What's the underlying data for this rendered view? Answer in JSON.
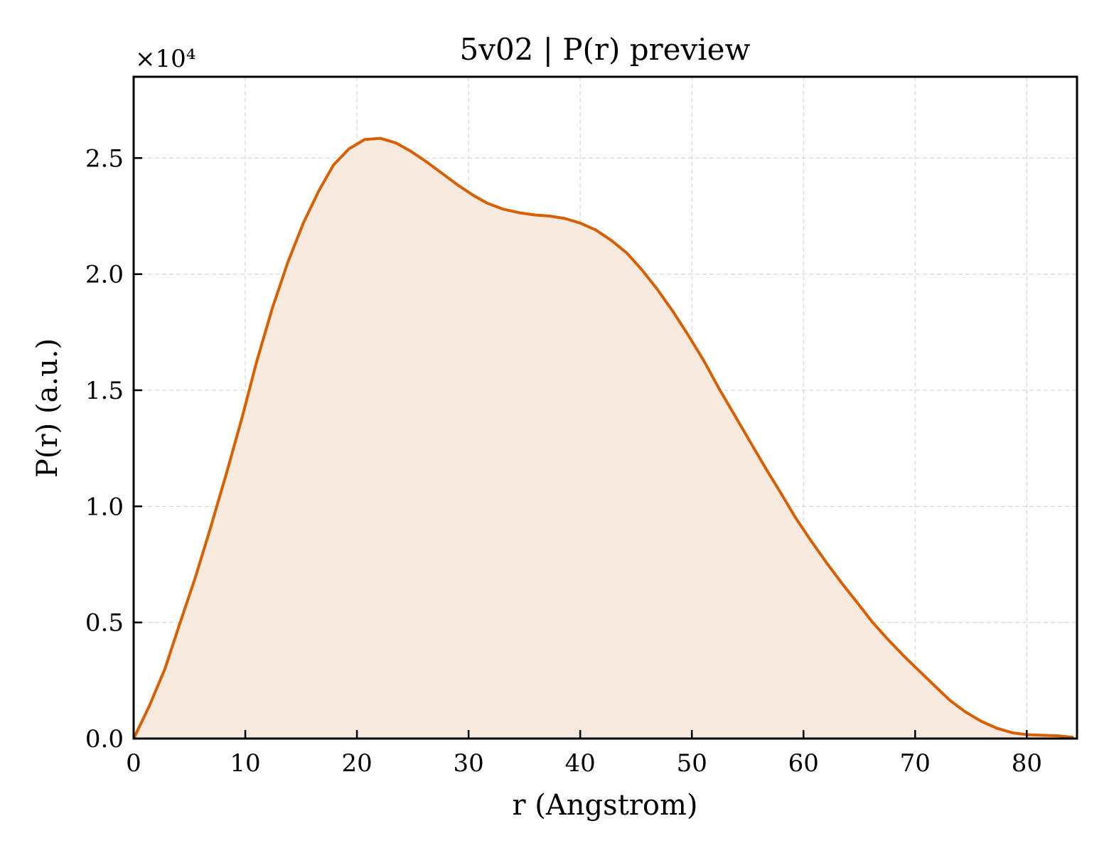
{
  "chart_data": {
    "type": "area",
    "title": "5v02 | P(r) preview",
    "xlabel": "r (Angstrom)",
    "ylabel": "P(r) (a.u.)",
    "y_scale_label": "×10⁴",
    "xlim": [
      0,
      84.5
    ],
    "ylim": [
      0,
      2.85
    ],
    "x_ticks": [
      0,
      10,
      20,
      30,
      40,
      50,
      60,
      70,
      80
    ],
    "x_tick_labels": [
      "0",
      "10",
      "20",
      "30",
      "40",
      "50",
      "60",
      "70",
      "80"
    ],
    "y_ticks": [
      0,
      0.5,
      1.0,
      1.5,
      2.0,
      2.5
    ],
    "y_tick_labels": [
      "0.0",
      "0.5",
      "1.0",
      "1.5",
      "2.0",
      "2.5"
    ],
    "grid": true,
    "line_color": "#d95f02",
    "fill_color": "#f9eadf",
    "series": [
      {
        "x": [
          0,
          1.4,
          2.8,
          4.1,
          5.5,
          6.9,
          8.3,
          9.7,
          11.0,
          12.4,
          13.8,
          15.2,
          16.6,
          17.9,
          19.3,
          20.7,
          22.1,
          23.5,
          24.8,
          26.2,
          27.6,
          29.0,
          30.4,
          31.7,
          33.1,
          34.5,
          35.9,
          37.3,
          38.6,
          40.0,
          41.4,
          42.8,
          44.2,
          45.5,
          46.9,
          48.3,
          49.7,
          51.1,
          52.4,
          53.8,
          55.2,
          56.6,
          58.0,
          59.3,
          60.7,
          62.1,
          63.5,
          64.9,
          66.2,
          67.6,
          69.0,
          70.4,
          71.8,
          73.1,
          74.5,
          75.9,
          77.3,
          78.7,
          80.0,
          81.4,
          82.8,
          84.2
        ],
        "y": [
          0,
          0.14,
          0.3,
          0.49,
          0.69,
          0.91,
          1.14,
          1.38,
          1.62,
          1.85,
          2.05,
          2.22,
          2.36,
          2.47,
          2.54,
          2.58,
          2.585,
          2.565,
          2.53,
          2.485,
          2.435,
          2.385,
          2.34,
          2.305,
          2.28,
          2.265,
          2.255,
          2.25,
          2.24,
          2.22,
          2.19,
          2.145,
          2.09,
          2.02,
          1.935,
          1.84,
          1.735,
          1.625,
          1.51,
          1.395,
          1.28,
          1.165,
          1.055,
          0.95,
          0.85,
          0.755,
          0.665,
          0.58,
          0.5,
          0.425,
          0.355,
          0.29,
          0.225,
          0.165,
          0.115,
          0.075,
          0.045,
          0.025,
          0.017,
          0.014,
          0.012,
          0.005
        ]
      }
    ]
  }
}
